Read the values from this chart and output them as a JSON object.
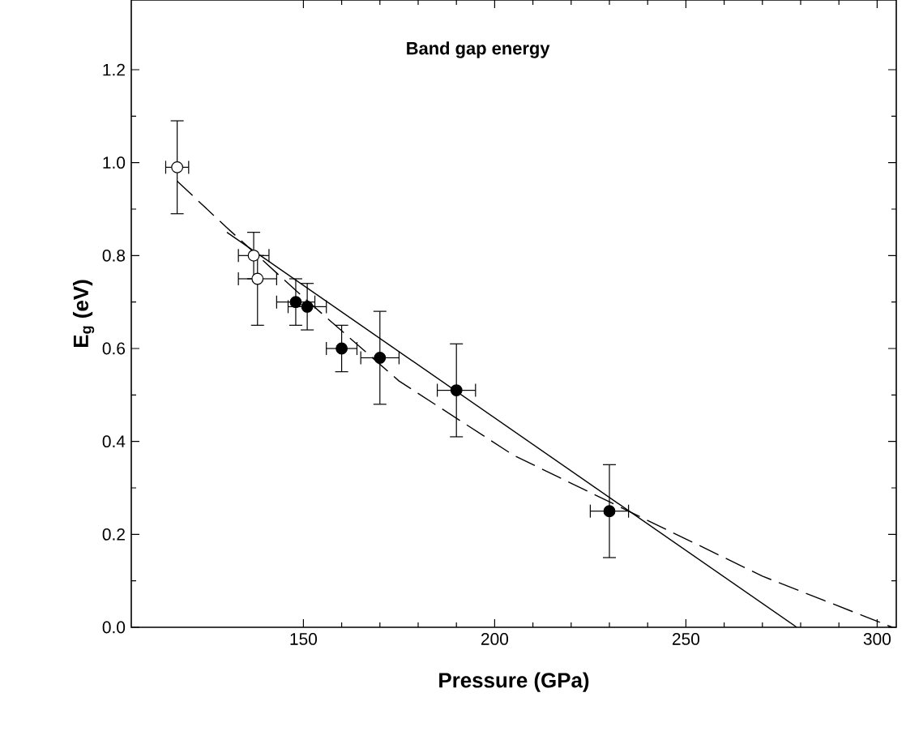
{
  "chart_data": {
    "type": "scatter",
    "title": "Band gap energy",
    "xlabel": "Pressure (GPa)",
    "ylabel": "E$_{g}$ (eV)",
    "xlim": [
      105,
      305
    ],
    "ylim": [
      0,
      1.35
    ],
    "xticks": [
      150,
      200,
      250,
      300
    ],
    "yticks": [
      {
        "value": 0,
        "label": "0.0"
      },
      {
        "value": 0.2,
        "label": "0.2"
      },
      {
        "value": 0.4,
        "label": "0.4"
      },
      {
        "value": 0.6,
        "label": "0.6"
      },
      {
        "value": 0.8,
        "label": "0.8"
      },
      {
        "value": 1.0,
        "label": "1.0"
      },
      {
        "value": 1.2,
        "label": "1.2"
      }
    ],
    "marker": "circle",
    "series": [
      {
        "type": "line",
        "color": "#000000",
        "line_style": "solid",
        "marker": "none",
        "x": [
          130,
          279
        ],
        "values": [
          0.85,
          0
        ]
      },
      {
        "type": "line",
        "color": "#000000",
        "line_style": "dashed",
        "marker": "none",
        "x": [
          117,
          130,
          150,
          175,
          205,
          230,
          250,
          270,
          304
        ],
        "values": [
          0.96,
          0.86,
          0.71,
          0.53,
          0.37,
          0.27,
          0.19,
          0.11,
          0
        ]
      },
      {
        "color": "#ffffff",
        "x": [
          117,
          137,
          138
        ],
        "values": [
          0.99,
          0.8,
          0.75
        ],
        "errors": [
          0.1,
          0.05,
          [
            0.65,
            0.8
          ]
        ],
        "xerrors": [
          3,
          4,
          5
        ]
      },
      {
        "color": "#000000",
        "x": [
          148,
          151,
          160,
          170,
          190,
          230
        ],
        "values": [
          0.7,
          0.69,
          0.6,
          0.58,
          0.51,
          0.25
        ],
        "errors": [
          0.05,
          0.05,
          0.05,
          0.1,
          0.1,
          0.1
        ],
        "xerrors": [
          5,
          5,
          4,
          5,
          5,
          5
        ]
      }
    ]
  }
}
